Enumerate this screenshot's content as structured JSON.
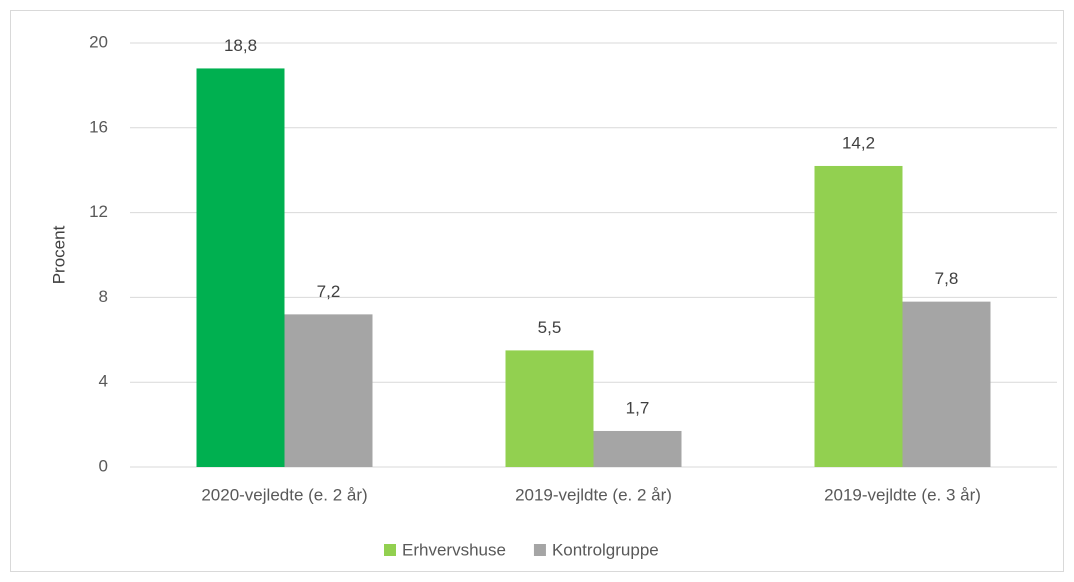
{
  "chart_data": {
    "type": "bar",
    "y_label": "Procent",
    "categories": [
      "2020-vejledte (e. 2 år)",
      "2019-vejldte (e. 2 år)",
      "2019-vejldte (e. 3 år)"
    ],
    "series": [
      {
        "name": "Erhvervshuse",
        "color": "#92d050",
        "point_colors": [
          "#00b050",
          "#92d050",
          "#92d050"
        ],
        "values": [
          18.8,
          5.5,
          14.2
        ],
        "value_labels": [
          "18,8",
          "5,5",
          "14,2"
        ]
      },
      {
        "name": "Kontrolgruppe",
        "color": "#a5a5a5",
        "values": [
          7.2,
          1.7,
          7.8
        ],
        "value_labels": [
          "7,2",
          "1,7",
          "7,8"
        ]
      }
    ],
    "ylim": [
      0,
      20
    ],
    "yticks": [
      0,
      4,
      8,
      12,
      16,
      20
    ],
    "grid": true,
    "legend": "bottom"
  }
}
